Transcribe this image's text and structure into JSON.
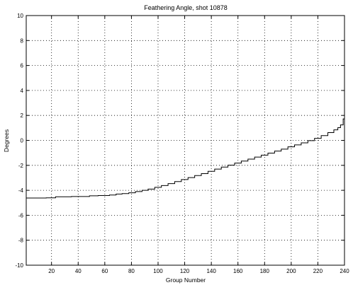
{
  "chart_data": {
    "type": "line",
    "title": "Feathering Angle, shot 10878",
    "xlabel": "Group Number",
    "ylabel": "Degrees",
    "xlim": [
      1,
      240
    ],
    "ylim": [
      -10,
      10
    ],
    "xticks": [
      20,
      40,
      60,
      80,
      100,
      120,
      140,
      160,
      180,
      200,
      220,
      240
    ],
    "yticks": [
      -10,
      -8,
      -6,
      -4,
      -2,
      0,
      2,
      4,
      6,
      8,
      10
    ],
    "grid": true,
    "series": [
      {
        "name": "",
        "step": true,
        "x": [
          1,
          10,
          22,
          24,
          30,
          40,
          47,
          50,
          60,
          67,
          70,
          76,
          80,
          86,
          90,
          95,
          100,
          105,
          110,
          115,
          120,
          125,
          130,
          135,
          140,
          145,
          150,
          155,
          160,
          165,
          170,
          175,
          180,
          185,
          190,
          195,
          200,
          205,
          210,
          215,
          220,
          225,
          230,
          234,
          236,
          238,
          240
        ],
        "y": [
          -4.62,
          -4.62,
          -4.6,
          -4.52,
          -4.52,
          -4.5,
          -4.5,
          -4.44,
          -4.42,
          -4.38,
          -4.3,
          -4.26,
          -4.2,
          -4.1,
          -4.0,
          -3.9,
          -3.76,
          -3.62,
          -3.46,
          -3.3,
          -3.14,
          -2.98,
          -2.82,
          -2.66,
          -2.48,
          -2.3,
          -2.14,
          -1.98,
          -1.82,
          -1.66,
          -1.5,
          -1.34,
          -1.18,
          -1.02,
          -0.86,
          -0.7,
          -0.52,
          -0.36,
          -0.2,
          -0.02,
          0.16,
          0.38,
          0.62,
          0.84,
          1.02,
          1.24,
          1.72
        ]
      }
    ]
  }
}
